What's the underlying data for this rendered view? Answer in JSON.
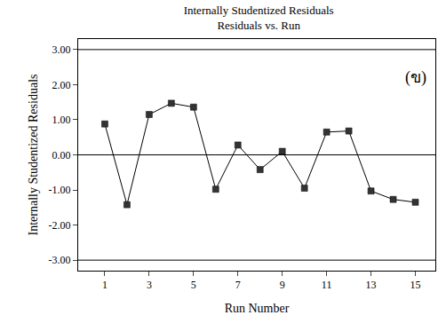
{
  "chart_data": {
    "type": "line",
    "title": [
      "Internally Studentized Residuals",
      "Residuals vs. Run"
    ],
    "x_label": "Run Number",
    "y_label": "Internally Studentized Residuals",
    "x": [
      1,
      2,
      3,
      4,
      5,
      6,
      7,
      8,
      9,
      10,
      11,
      12,
      13,
      14,
      15
    ],
    "values": [
      0.88,
      -1.42,
      1.15,
      1.47,
      1.36,
      -0.98,
      0.28,
      -0.42,
      0.1,
      -0.95,
      0.65,
      0.68,
      -1.03,
      -1.27,
      -1.35
    ],
    "color": "#333333",
    "marker": "square",
    "line_style": "solid",
    "xlim": [
      -0.2,
      15.9
    ],
    "xticks": [
      1,
      3,
      5,
      7,
      9,
      11,
      13,
      15
    ],
    "ylim": [
      -3.3,
      3.3
    ],
    "yticks": [
      {
        "value": -3,
        "label": "-3.00"
      },
      {
        "value": -2,
        "label": "-2.00"
      },
      {
        "value": -1,
        "label": "-1.00"
      },
      {
        "value": 0,
        "label": "0.00"
      },
      {
        "value": 1,
        "label": "1.00"
      },
      {
        "value": 2,
        "label": "2.00"
      },
      {
        "value": 3,
        "label": "3.00"
      }
    ],
    "limits": [
      -3,
      3
    ],
    "annotations": [
      {
        "text": "(ข)",
        "x": 15,
        "y": 2.2
      }
    ],
    "grid": false
  }
}
